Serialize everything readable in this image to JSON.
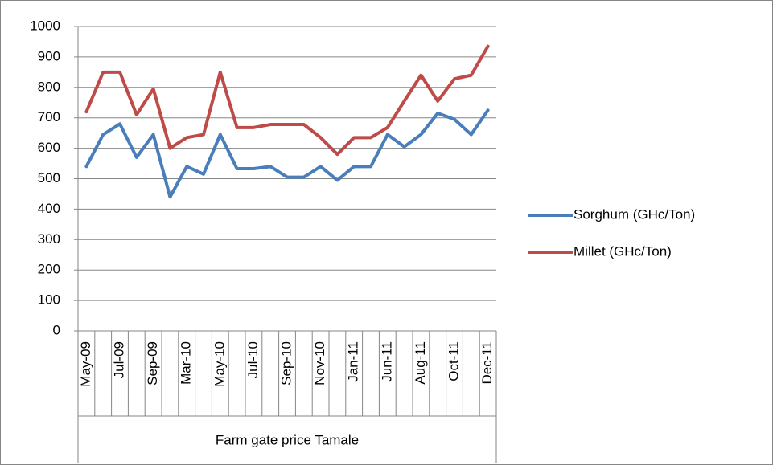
{
  "chart_data": {
    "type": "line",
    "categories": [
      "May-09",
      null,
      "Jul-09",
      null,
      "Sep-09",
      null,
      "Mar-10",
      null,
      "May-10",
      null,
      "Jul-10",
      null,
      "Sep-10",
      null,
      "Nov-10",
      null,
      "Jan-11",
      null,
      "Jun-11",
      null,
      "Aug-11",
      null,
      "Oct-11",
      null,
      "Dec-11"
    ],
    "x_group_label": "Farm gate price Tamale",
    "series": [
      {
        "name": "Sorghum (GHc/Ton)",
        "color": "#4a7ebb",
        "values": [
          540,
          645,
          680,
          570,
          645,
          440,
          540,
          515,
          645,
          533,
          533,
          540,
          505,
          505,
          540,
          495,
          540,
          540,
          645,
          605,
          645,
          715,
          695,
          645,
          725
        ]
      },
      {
        "name": "Millet (GHc/Ton)",
        "color": "#be4b48",
        "values": [
          720,
          850,
          850,
          710,
          795,
          600,
          635,
          645,
          850,
          668,
          668,
          678,
          678,
          678,
          635,
          580,
          635,
          635,
          668,
          755,
          840,
          755,
          828,
          840,
          935
        ]
      }
    ],
    "ylim": [
      0,
      1000
    ],
    "yticks": [
      0,
      100,
      200,
      300,
      400,
      500,
      600,
      700,
      800,
      900,
      1000
    ],
    "grid": true,
    "legend": "right"
  }
}
